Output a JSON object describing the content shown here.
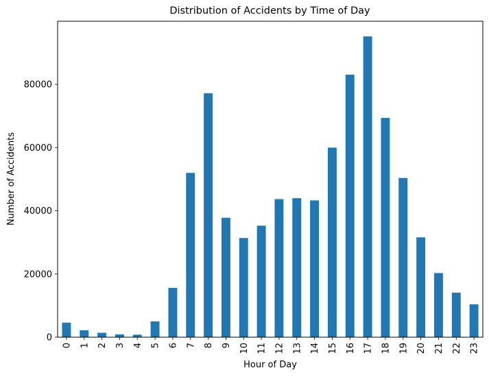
{
  "chart_data": {
    "type": "bar",
    "title": "Distribution of Accidents by Time of Day",
    "xlabel": "Hour of Day",
    "ylabel": "Number of Accidents",
    "categories": [
      "0",
      "1",
      "2",
      "3",
      "4",
      "5",
      "6",
      "7",
      "8",
      "9",
      "10",
      "11",
      "12",
      "13",
      "14",
      "15",
      "16",
      "17",
      "18",
      "19",
      "20",
      "21",
      "22",
      "23"
    ],
    "values": [
      4600,
      2200,
      1400,
      900,
      800,
      5000,
      15600,
      52000,
      77200,
      37800,
      31400,
      35300,
      43700,
      44000,
      43300,
      60000,
      83100,
      95200,
      69400,
      50400,
      31600,
      20300,
      14100,
      10400
    ],
    "ylim": [
      0,
      100000
    ],
    "yticks": [
      0,
      20000,
      40000,
      60000,
      80000
    ],
    "ytick_labels": [
      "0",
      "20000",
      "40000",
      "60000",
      "80000"
    ],
    "bar_color": "#1f77b4",
    "grid": false,
    "legend": "none"
  }
}
